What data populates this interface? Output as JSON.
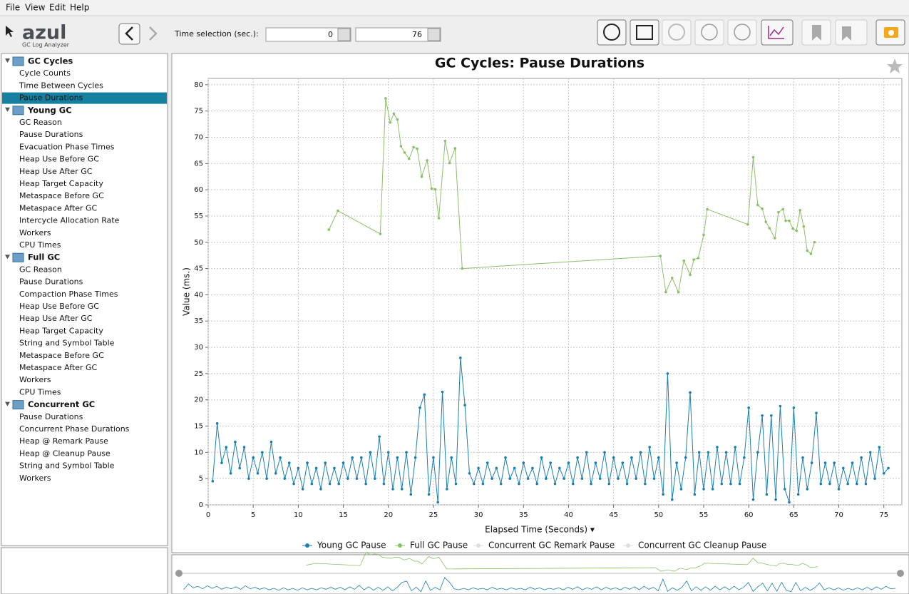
{
  "menu": [
    "File",
    "View",
    "Edit",
    "Help"
  ],
  "logo": {
    "name": "azul",
    "subtitle": "GC Log Analyzer"
  },
  "time_selection": {
    "label": "Time selection (sec.):",
    "start": 0,
    "end": 76
  },
  "sidebar": {
    "groups": [
      {
        "title": "GC Cycles",
        "items": [
          {
            "label": "Cycle Counts"
          },
          {
            "label": "Time Between Cycles"
          },
          {
            "label": "Pause Durations",
            "selected": true
          }
        ]
      },
      {
        "title": "Young GC",
        "items": [
          {
            "label": "GC Reason"
          },
          {
            "label": "Pause Durations"
          },
          {
            "label": "Evacuation Phase Times",
            "disabled": true
          },
          {
            "label": "Heap Use Before GC"
          },
          {
            "label": "Heap Use After GC"
          },
          {
            "label": "Heap Target Capacity"
          },
          {
            "label": "Metaspace Before GC",
            "disabled": true
          },
          {
            "label": "Metaspace After GC",
            "disabled": true
          },
          {
            "label": "Intercycle Allocation Rate"
          },
          {
            "label": "Workers"
          },
          {
            "label": "CPU Times",
            "disabled": true
          }
        ]
      },
      {
        "title": "Full GC",
        "items": [
          {
            "label": "GC Reason"
          },
          {
            "label": "Pause Durations"
          },
          {
            "label": "Compaction Phase Times",
            "disabled": true
          },
          {
            "label": "Heap Use Before GC"
          },
          {
            "label": "Heap Use After GC"
          },
          {
            "label": "Heap Target Capacity"
          },
          {
            "label": "String and Symbol Table"
          },
          {
            "label": "Metaspace Before GC",
            "disabled": true
          },
          {
            "label": "Metaspace After GC",
            "disabled": true
          },
          {
            "label": "Workers"
          },
          {
            "label": "CPU Times",
            "disabled": true
          }
        ]
      },
      {
        "title": "Concurrent GC",
        "items": [
          {
            "label": "Pause Durations",
            "disabled": true
          },
          {
            "label": "Concurrent Phase Durations",
            "disabled": true
          },
          {
            "label": "Heap @ Remark Pause",
            "disabled": true
          },
          {
            "label": "Heap @ Cleanup Pause",
            "disabled": true
          },
          {
            "label": "String and Symbol Table",
            "disabled": true
          },
          {
            "label": "Workers",
            "disabled": true
          }
        ]
      }
    ]
  },
  "chart_data": {
    "type": "line",
    "title": "GC Cycles: Pause Durations",
    "x_label": "Elapsed Time (Seconds) ▾",
    "y_label": "Value (ms.)",
    "xlim": [
      0,
      77
    ],
    "ylim": [
      0,
      81.2
    ],
    "xticks": [
      0,
      5,
      10,
      15,
      20,
      25,
      30,
      35,
      40,
      45,
      50,
      55,
      60,
      65,
      70,
      75
    ],
    "yticks": [
      0,
      5,
      10,
      15,
      20,
      25,
      30,
      35,
      40,
      45,
      50,
      55,
      60,
      65,
      70,
      75,
      80
    ],
    "grid": true,
    "series": [
      {
        "name": "Young GC Pause",
        "color": "#1a7fb0",
        "x": [
          0.5,
          1,
          1.5,
          2,
          2.5,
          3,
          3.5,
          4,
          4.5,
          5,
          5.5,
          6,
          6.5,
          7,
          7.5,
          8,
          8.5,
          9,
          9.5,
          10,
          10.5,
          11,
          11.5,
          12,
          12.5,
          13,
          13.5,
          14,
          14.5,
          15,
          15.5,
          16,
          16.5,
          17,
          17.5,
          18,
          18.5,
          19,
          19.5,
          20,
          20.5,
          21,
          21.5,
          22,
          22.5,
          23,
          23.5,
          24,
          24.5,
          25,
          25.5,
          26,
          26.5,
          27,
          27.5,
          28,
          28.5,
          29,
          29.5,
          30,
          30.5,
          31,
          31.5,
          32,
          32.5,
          33,
          33.5,
          34,
          34.5,
          35,
          35.5,
          36,
          36.5,
          37,
          37.5,
          38,
          38.5,
          39,
          39.5,
          40,
          40.5,
          41,
          41.5,
          42,
          42.5,
          43,
          43.5,
          44,
          44.5,
          45,
          45.5,
          46,
          46.5,
          47,
          47.5,
          48,
          48.5,
          49,
          49.5,
          50,
          50.5,
          51,
          51.5,
          52,
          52.5,
          53,
          53.5,
          54,
          54.5,
          55,
          55.5,
          56,
          56.5,
          57,
          57.5,
          58,
          58.5,
          59,
          59.5,
          60,
          60.5,
          61,
          61.5,
          62,
          62.5,
          63,
          63.5,
          64,
          64.5,
          65,
          65.5,
          66,
          66.5,
          67,
          67.5,
          68,
          68.5,
          69,
          69.5,
          70,
          70.5,
          71,
          71.5,
          72,
          72.5,
          73,
          73.5,
          74,
          74.5,
          75,
          75.5
        ],
        "values": [
          4.5,
          15.5,
          8,
          11,
          6,
          12,
          7,
          11,
          5,
          9,
          6,
          10,
          5,
          12,
          6,
          9,
          5,
          8,
          4,
          7,
          3,
          8,
          4,
          7,
          3,
          8,
          4,
          7,
          4,
          8,
          5,
          9,
          5,
          9,
          4,
          10,
          5,
          13,
          4,
          10,
          3,
          9,
          3,
          10,
          2,
          9,
          18.5,
          21,
          2,
          9,
          0.5,
          21.5,
          3,
          9,
          4,
          28,
          19,
          6,
          4,
          7,
          4,
          8,
          5,
          7,
          4,
          9,
          5,
          7,
          4,
          8,
          5,
          7,
          4,
          9,
          5,
          8,
          4,
          7,
          5,
          8,
          4,
          9,
          5,
          10,
          4,
          8,
          5,
          10,
          4,
          9,
          5,
          8,
          4,
          9,
          5,
          10,
          4,
          11,
          5,
          9,
          2,
          25,
          1,
          8,
          3,
          9,
          21.4,
          2,
          10,
          3,
          10,
          3,
          11,
          4,
          10,
          4,
          11,
          4,
          9,
          18.5,
          1,
          10,
          17,
          2,
          17,
          1,
          18.8,
          3,
          0.5,
          18.5,
          2,
          9,
          3,
          8,
          17.5,
          4,
          8,
          4,
          8,
          3,
          7,
          4,
          8,
          4,
          9,
          4,
          10,
          5,
          11,
          6,
          7
        ]
      },
      {
        "name": "Full GC Pause",
        "color": "#8cbf6a",
        "x": [
          13.4,
          14.4,
          19.1,
          19.7,
          20.2,
          20.6,
          21,
          21.4,
          21.8,
          22.3,
          22.8,
          23.2,
          23.7,
          24.3,
          24.8,
          25.2,
          25.6,
          26.3,
          26.8,
          27.4,
          28.2,
          50.2,
          50.8,
          51.5,
          52.2,
          52.8,
          53.5,
          53.9,
          54.4,
          55,
          55.4,
          59.9,
          60.5,
          61,
          61.5,
          61.9,
          62.3,
          62.9,
          63.3,
          63.8,
          64.1,
          64.5,
          64.9,
          65.3,
          65.7,
          66.1,
          66.5,
          66.9,
          67.3
        ],
        "values": [
          52.4,
          56,
          51.6,
          77.4,
          72.8,
          74.5,
          73.4,
          68.3,
          67.1,
          65.9,
          68.1,
          67.8,
          62.5,
          65.6,
          60.2,
          60.1,
          54.6,
          69.3,
          65.1,
          67.9,
          45,
          47.4,
          40.5,
          43.2,
          40.5,
          46.5,
          43.8,
          46.7,
          47,
          51.4,
          56.3,
          53.4,
          66.2,
          57.1,
          56.4,
          53.9,
          52.7,
          50.8,
          55.7,
          56.3,
          54.1,
          54.1,
          52.6,
          52.2,
          56.1,
          53,
          48.4,
          47.8,
          50
        ]
      },
      {
        "name": "Concurrent GC Remark Pause",
        "color": "#dddddd",
        "x": [],
        "values": []
      },
      {
        "name": "Concurrent GC Cleanup Pause",
        "color": "#dddddd",
        "x": [],
        "values": []
      }
    ]
  }
}
